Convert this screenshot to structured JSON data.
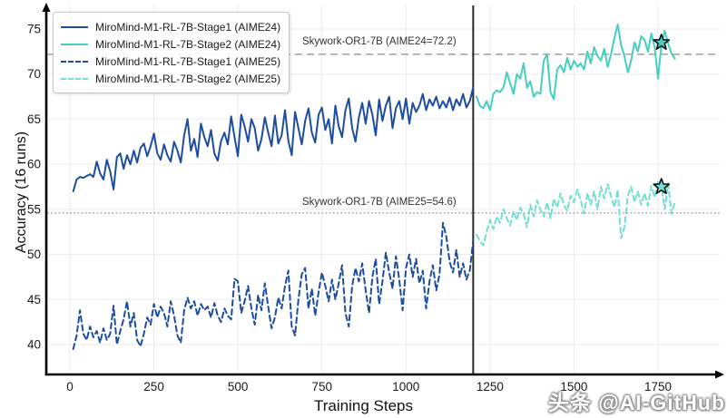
{
  "watermark": {
    "text": "头条 @AI-GitHub"
  },
  "chart_data": {
    "type": "line",
    "title": "",
    "xlabel": "Training Steps",
    "ylabel": "Accuracy (16 runs)",
    "x_ticks": [
      0,
      250,
      500,
      750,
      1000,
      1250,
      1500,
      1750
    ],
    "y_ticks": [
      40,
      45,
      50,
      55,
      60,
      65,
      70,
      75
    ],
    "xlim": [
      -90,
      1950
    ],
    "ylim": [
      36.7,
      77.9
    ],
    "grid": true,
    "legend_position": "upper left",
    "stage_separator_x": 1200,
    "colors": {
      "blue": "#1d4da0",
      "teal_solid": "#45cfc1",
      "teal_dashed": "#74dfd3",
      "reference_gray": "#999999",
      "grid_gray": "#ebebeb",
      "separator_black": "#2a2a2a"
    },
    "reference_lines": [
      {
        "label": "Skywork-OR1-7B (AIME24=72.2)",
        "y": 72.2,
        "style": "dashed",
        "color": "#999999"
      },
      {
        "label": "Skywork-OR1-7B (AIME25=54.6)",
        "y": 54.6,
        "style": "dotted",
        "color": "#999999"
      }
    ],
    "series": [
      {
        "name": "MiroMind-M1-RL-7B-Stage1 (AIME24)",
        "color": "#1d4da0",
        "dash": "solid",
        "x_start": 10,
        "x_step": 10,
        "values": [
          57.0,
          58.3,
          58.6,
          58.5,
          58.7,
          58.9,
          58.6,
          60.3,
          59.0,
          58.3,
          60.5,
          59.2,
          57.2,
          60.8,
          61.2,
          59.5,
          61.0,
          60.0,
          61.5,
          60.2,
          61.8,
          62.3,
          60.9,
          62.0,
          63.4,
          61.2,
          60.5,
          62.2,
          61.0,
          60.3,
          62.5,
          61.5,
          60.2,
          63.2,
          65.0,
          61.5,
          62.8,
          60.8,
          64.5,
          63.0,
          62.0,
          63.8,
          61.2,
          60.4,
          62.6,
          63.5,
          62.2,
          65.3,
          63.0,
          60.9,
          65.5,
          64.2,
          62.5,
          65.0,
          64.0,
          61.5,
          62.8,
          65.2,
          63.5,
          62.0,
          65.4,
          62.3,
          63.2,
          66.0,
          62.6,
          61.0,
          65.8,
          64.0,
          62.2,
          64.8,
          66.2,
          63.5,
          62.4,
          65.5,
          66.3,
          63.8,
          65.0,
          62.3,
          66.5,
          64.2,
          63.0,
          66.0,
          67.3,
          64.0,
          62.5,
          65.2,
          66.8,
          64.5,
          67.0,
          65.5,
          63.2,
          67.2,
          64.8,
          66.5,
          67.5,
          64.0,
          66.2,
          67.0,
          65.0,
          67.3,
          64.5,
          66.8,
          65.8,
          66.5,
          67.8,
          66.0,
          67.2,
          66.5,
          67.5,
          66.2,
          67.0,
          66.3,
          67.4,
          66.0,
          67.2,
          66.5,
          67.8,
          66.3,
          67.0,
          68.5
        ]
      },
      {
        "name": "MiroMind-M1-RL-7B-Stage2 (AIME24)",
        "color": "#45cfc1",
        "dash": "solid",
        "x_start": 1210,
        "x_step": 10,
        "values": [
          67.5,
          66.5,
          66.2,
          67.0,
          66.0,
          67.8,
          68.2,
          68.0,
          68.5,
          70.2,
          69.0,
          67.8,
          70.0,
          69.5,
          71.2,
          68.5,
          69.2,
          67.5,
          68.0,
          67.8,
          71.5,
          72.2,
          68.0,
          67.2,
          70.5,
          71.0,
          70.2,
          71.8,
          70.5,
          71.5,
          70.8,
          71.2,
          70.5,
          72.5,
          71.2,
          73.0,
          72.0,
          71.5,
          72.8,
          70.8,
          72.2,
          74.0,
          75.5,
          73.2,
          72.0,
          70.2,
          71.5,
          73.5,
          72.5,
          74.2,
          73.8,
          72.5,
          74.5,
          73.0,
          69.5,
          73.2,
          74.8,
          73.4,
          72.3,
          71.7
        ],
        "star": {
          "x": 1760,
          "y": 73.5
        }
      },
      {
        "name": "MiroMind-M1-RL-7B-Stage1 (AIME25)",
        "color": "#1d4da0",
        "dash": "dashed",
        "x_start": 10,
        "x_step": 10,
        "values": [
          39.5,
          41.0,
          43.8,
          41.2,
          40.5,
          42.0,
          40.8,
          41.5,
          40.2,
          41.8,
          40.5,
          41.2,
          44.3,
          40.0,
          41.5,
          42.8,
          44.8,
          42.0,
          43.5,
          40.5,
          39.8,
          41.2,
          43.0,
          42.2,
          44.5,
          43.0,
          44.2,
          43.5,
          42.0,
          44.8,
          43.2,
          41.0,
          40.2,
          43.8,
          45.2,
          44.0,
          44.8,
          43.2,
          44.5,
          43.8,
          44.2,
          43.0,
          44.6,
          43.2,
          42.5,
          44.0,
          43.2,
          42.8,
          47.3,
          47.0,
          43.5,
          44.8,
          46.5,
          44.0,
          42.2,
          45.5,
          43.8,
          46.8,
          44.2,
          41.8,
          43.0,
          45.2,
          44.0,
          46.5,
          48.2,
          42.0,
          41.0,
          45.0,
          47.8,
          48.5,
          44.0,
          46.2,
          43.2,
          45.8,
          48.0,
          46.5,
          44.8,
          47.2,
          45.0,
          46.8,
          48.8,
          43.5,
          42.0,
          46.5,
          48.5,
          47.0,
          49.0,
          46.0,
          43.5,
          47.5,
          49.5,
          44.5,
          47.0,
          50.2,
          48.0,
          46.2,
          49.8,
          47.2,
          43.8,
          48.5,
          50.0,
          47.5,
          49.5,
          46.8,
          48.2,
          44.0,
          47.0,
          48.8,
          46.0,
          47.8,
          53.5,
          52.0,
          49.2,
          48.0,
          50.5,
          47.5,
          49.0,
          47.2,
          48.2,
          51.5
        ]
      },
      {
        "name": "MiroMind-M1-RL-7B-Stage2 (AIME25)",
        "color": "#74dfd3",
        "dash": "dashed",
        "x_start": 1210,
        "x_step": 10,
        "values": [
          52.2,
          51.5,
          51.0,
          52.5,
          53.8,
          52.8,
          54.2,
          53.5,
          55.0,
          54.0,
          53.2,
          54.8,
          53.8,
          55.2,
          54.5,
          53.0,
          55.5,
          54.2,
          56.0,
          55.0,
          54.2,
          55.8,
          54.0,
          56.2,
          55.2,
          56.8,
          55.5,
          54.8,
          56.5,
          55.8,
          57.2,
          56.0,
          54.5,
          56.8,
          55.5,
          57.0,
          55.0,
          57.5,
          56.2,
          57.8,
          56.5,
          55.2,
          57.2,
          51.8,
          53.0,
          56.5,
          57.5,
          55.8,
          57.0,
          55.5,
          56.8,
          55.4,
          57.6,
          56.3,
          58.2,
          57.8,
          55.0,
          57.9,
          54.5,
          55.8
        ],
        "star": {
          "x": 1760,
          "y": 57.5
        }
      }
    ]
  }
}
